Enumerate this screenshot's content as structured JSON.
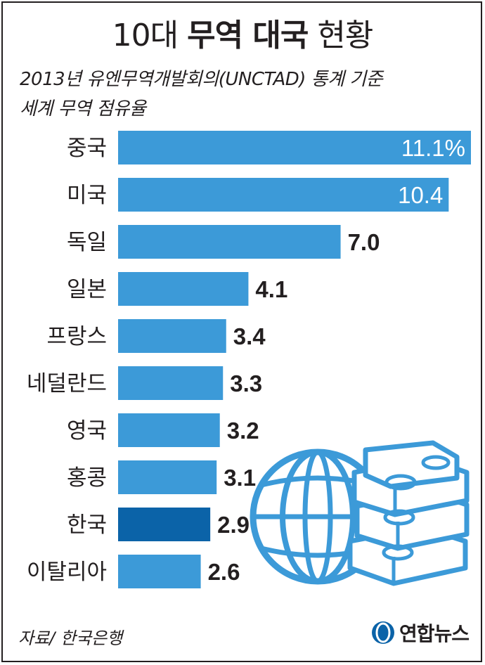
{
  "header": {
    "title_prefix": "10대",
    "title_bold": "무역 대국",
    "title_suffix": "현황",
    "subtitle_line1": "2013년 유엔무역개발회의(UNCTAD) 통계 기준",
    "subtitle_line2": "세계 무역 점유율"
  },
  "chart_data": {
    "type": "bar",
    "orientation": "horizontal",
    "categories": [
      "중국",
      "미국",
      "독일",
      "일본",
      "프랑스",
      "네덜란드",
      "영국",
      "홍콩",
      "한국",
      "이탈리아"
    ],
    "values": [
      11.1,
      10.4,
      7.0,
      4.1,
      3.4,
      3.3,
      3.2,
      3.1,
      2.9,
      2.6
    ],
    "value_labels": [
      "11.1%",
      "10.4",
      "7.0",
      "4.1",
      "3.4",
      "3.3",
      "3.2",
      "3.1",
      "2.9",
      "2.6"
    ],
    "label_inside": [
      true,
      true,
      false,
      false,
      false,
      false,
      false,
      false,
      false,
      false
    ],
    "highlight": [
      false,
      false,
      false,
      false,
      false,
      false,
      false,
      false,
      true,
      false
    ],
    "xlim": [
      0,
      11.1
    ],
    "grid": false,
    "colors": {
      "bar": "#3c9ad8",
      "highlight": "#0b63a8",
      "label_inside": "#ffffff",
      "label_outside": "#231f20"
    }
  },
  "footer": {
    "source": "자료/ 한국은행",
    "logo_text": "연합뉴스"
  },
  "colors": {
    "frame": "#231f20",
    "globe": "#3c9ad8",
    "money": "#3c9ad8"
  },
  "icons": [
    "globe-icon",
    "money-stack-icon",
    "yonhap-logo-icon"
  ]
}
